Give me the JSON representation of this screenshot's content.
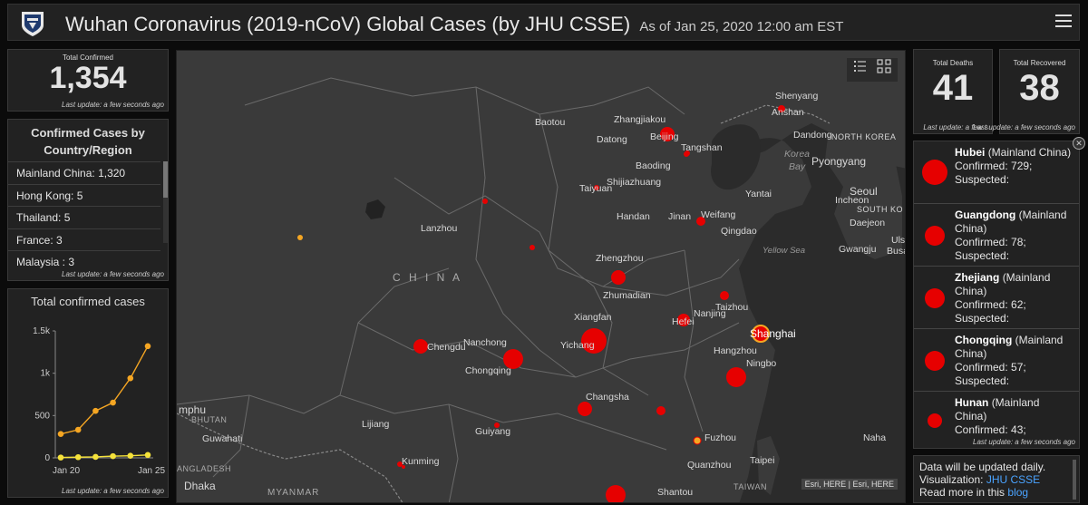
{
  "header": {
    "title": "Wuhan Coronavirus (2019-nCoV) Global Cases (by JHU CSSE)",
    "subtitle": "As of Jan 25, 2020 12:00 am EST"
  },
  "total_confirmed": {
    "label": "Total Confirmed",
    "value": "1,354",
    "update": "Last update: a few seconds ago"
  },
  "total_deaths": {
    "label": "Total Deaths",
    "value": "41",
    "update": "Last update: a few s"
  },
  "total_recovered": {
    "label": "Total Recovered",
    "value": "38",
    "update": "Last update: a few seconds ago"
  },
  "region_panel": {
    "title": "Confirmed Cases by Country/Region",
    "items": [
      {
        "label": "Mainland China:",
        "count": "1,320"
      },
      {
        "label": "Hong Kong:",
        "count": "5"
      },
      {
        "label": "Thailand:",
        "count": "5"
      },
      {
        "label": "France:",
        "count": "3"
      },
      {
        "label": "Malaysia :",
        "count": "3"
      }
    ],
    "update": "Last update: a few seconds ago"
  },
  "chart_panel": {
    "title": "Total confirmed cases",
    "update": "Last update: a few seconds ago"
  },
  "chart_data": {
    "type": "line",
    "title": "Total confirmed cases",
    "x": [
      "Jan 20",
      "Jan 21",
      "Jan 22",
      "Jan 23",
      "Jan 24",
      "Jan 25"
    ],
    "x_tick_labels": [
      "Jan 20",
      "Jan 25"
    ],
    "y_tick_labels": [
      "0",
      "500",
      "1k",
      "1.5k"
    ],
    "ylim": [
      0,
      1500
    ],
    "grid": false,
    "series": [
      {
        "color": "#f5a623",
        "values": [
          282,
          332,
          555,
          653,
          941,
          1320
        ]
      },
      {
        "color": "#f5e23b",
        "values": [
          4,
          8,
          11,
          20,
          25,
          34
        ]
      }
    ]
  },
  "map": {
    "labels": [
      {
        "text": "Shenyang"
      },
      {
        "text": "Anshan"
      },
      {
        "text": "Zhangjiakou"
      },
      {
        "text": "Beijing"
      },
      {
        "text": "Baotou"
      },
      {
        "text": "Datong"
      },
      {
        "text": "Tangshan"
      },
      {
        "text": "Dandong"
      },
      {
        "text": "NORTH KOREA"
      },
      {
        "text": "Pyongyang"
      },
      {
        "text": "Korea"
      },
      {
        "text": "Bay"
      },
      {
        "text": "Baoding"
      },
      {
        "text": "Taiyuan"
      },
      {
        "text": "Shijiazhuang"
      },
      {
        "text": "Yantai"
      },
      {
        "text": "Seoul"
      },
      {
        "text": "Incheon"
      },
      {
        "text": "SOUTH KO"
      },
      {
        "text": "Daejeon"
      },
      {
        "text": "Handan"
      },
      {
        "text": "Jinan"
      },
      {
        "text": "Weifang"
      },
      {
        "text": "Lanzhou"
      },
      {
        "text": "Qingdao"
      },
      {
        "text": "Gwangju"
      },
      {
        "text": "Uls"
      },
      {
        "text": "Busa"
      },
      {
        "text": "Yellow Sea"
      },
      {
        "text": "Zhengzhou"
      },
      {
        "text": "C H I N A"
      },
      {
        "text": "Zhumadian"
      },
      {
        "text": "Taizhou"
      },
      {
        "text": "Xiangfan"
      },
      {
        "text": "Nanjing"
      },
      {
        "text": "Hefei"
      },
      {
        "text": "Shanghai"
      },
      {
        "text": "Chengdu"
      },
      {
        "text": "Nanchong"
      },
      {
        "text": "Yichang"
      },
      {
        "text": "Hangzhou"
      },
      {
        "text": "Chongqing"
      },
      {
        "text": "Ningbo"
      },
      {
        "text": "Changsha"
      },
      {
        "text": "mphu"
      },
      {
        "text": "BHUTAN"
      },
      {
        "text": "Lijiang"
      },
      {
        "text": "Guwahati"
      },
      {
        "text": "Guiyang"
      },
      {
        "text": "Fuzhou"
      },
      {
        "text": "Naha"
      },
      {
        "text": "Kunming"
      },
      {
        "text": "Quanzhou"
      },
      {
        "text": "Taipei"
      },
      {
        "text": "ANGLADESH"
      },
      {
        "text": "Dhaka"
      },
      {
        "text": "MYANMAR"
      },
      {
        "text": "Shantou"
      },
      {
        "text": "TAIWAN"
      }
    ],
    "attribution": "Esri, HERE | Esri, HERE"
  },
  "provinces": [
    {
      "name": "Hubei",
      "region": "(Mainland China)",
      "confirmed": "Confirmed: 729;",
      "suspected": "Suspected:"
    },
    {
      "name": "Guangdong",
      "region": "(Mainland China)",
      "confirmed": "Confirmed: 78;",
      "suspected": "Suspected:"
    },
    {
      "name": "Zhejiang",
      "region": "(Mainland China)",
      "confirmed": "Confirmed: 62;",
      "suspected": "Suspected:"
    },
    {
      "name": "Chongqing",
      "region": "(Mainland China)",
      "confirmed": "Confirmed: 57;",
      "suspected": "Suspected:"
    },
    {
      "name": "Hunan",
      "region": "(Mainland China)",
      "confirmed": "Confirmed: 43;",
      "suspected": ""
    }
  ],
  "provinces_update": "Last update: a few seconds ago",
  "info": {
    "line1": "Data will be updated daily.",
    "line2_prefix": "Visualization:",
    "line2_link": "JHU CSSE",
    "line3_prefix": "Read more in this",
    "line3_link": "blog"
  },
  "colors": {
    "case_dot": "#e60000",
    "accent_orange": "#f5a623",
    "accent_yellow": "#f5e23b",
    "link": "#4aa3ff"
  }
}
